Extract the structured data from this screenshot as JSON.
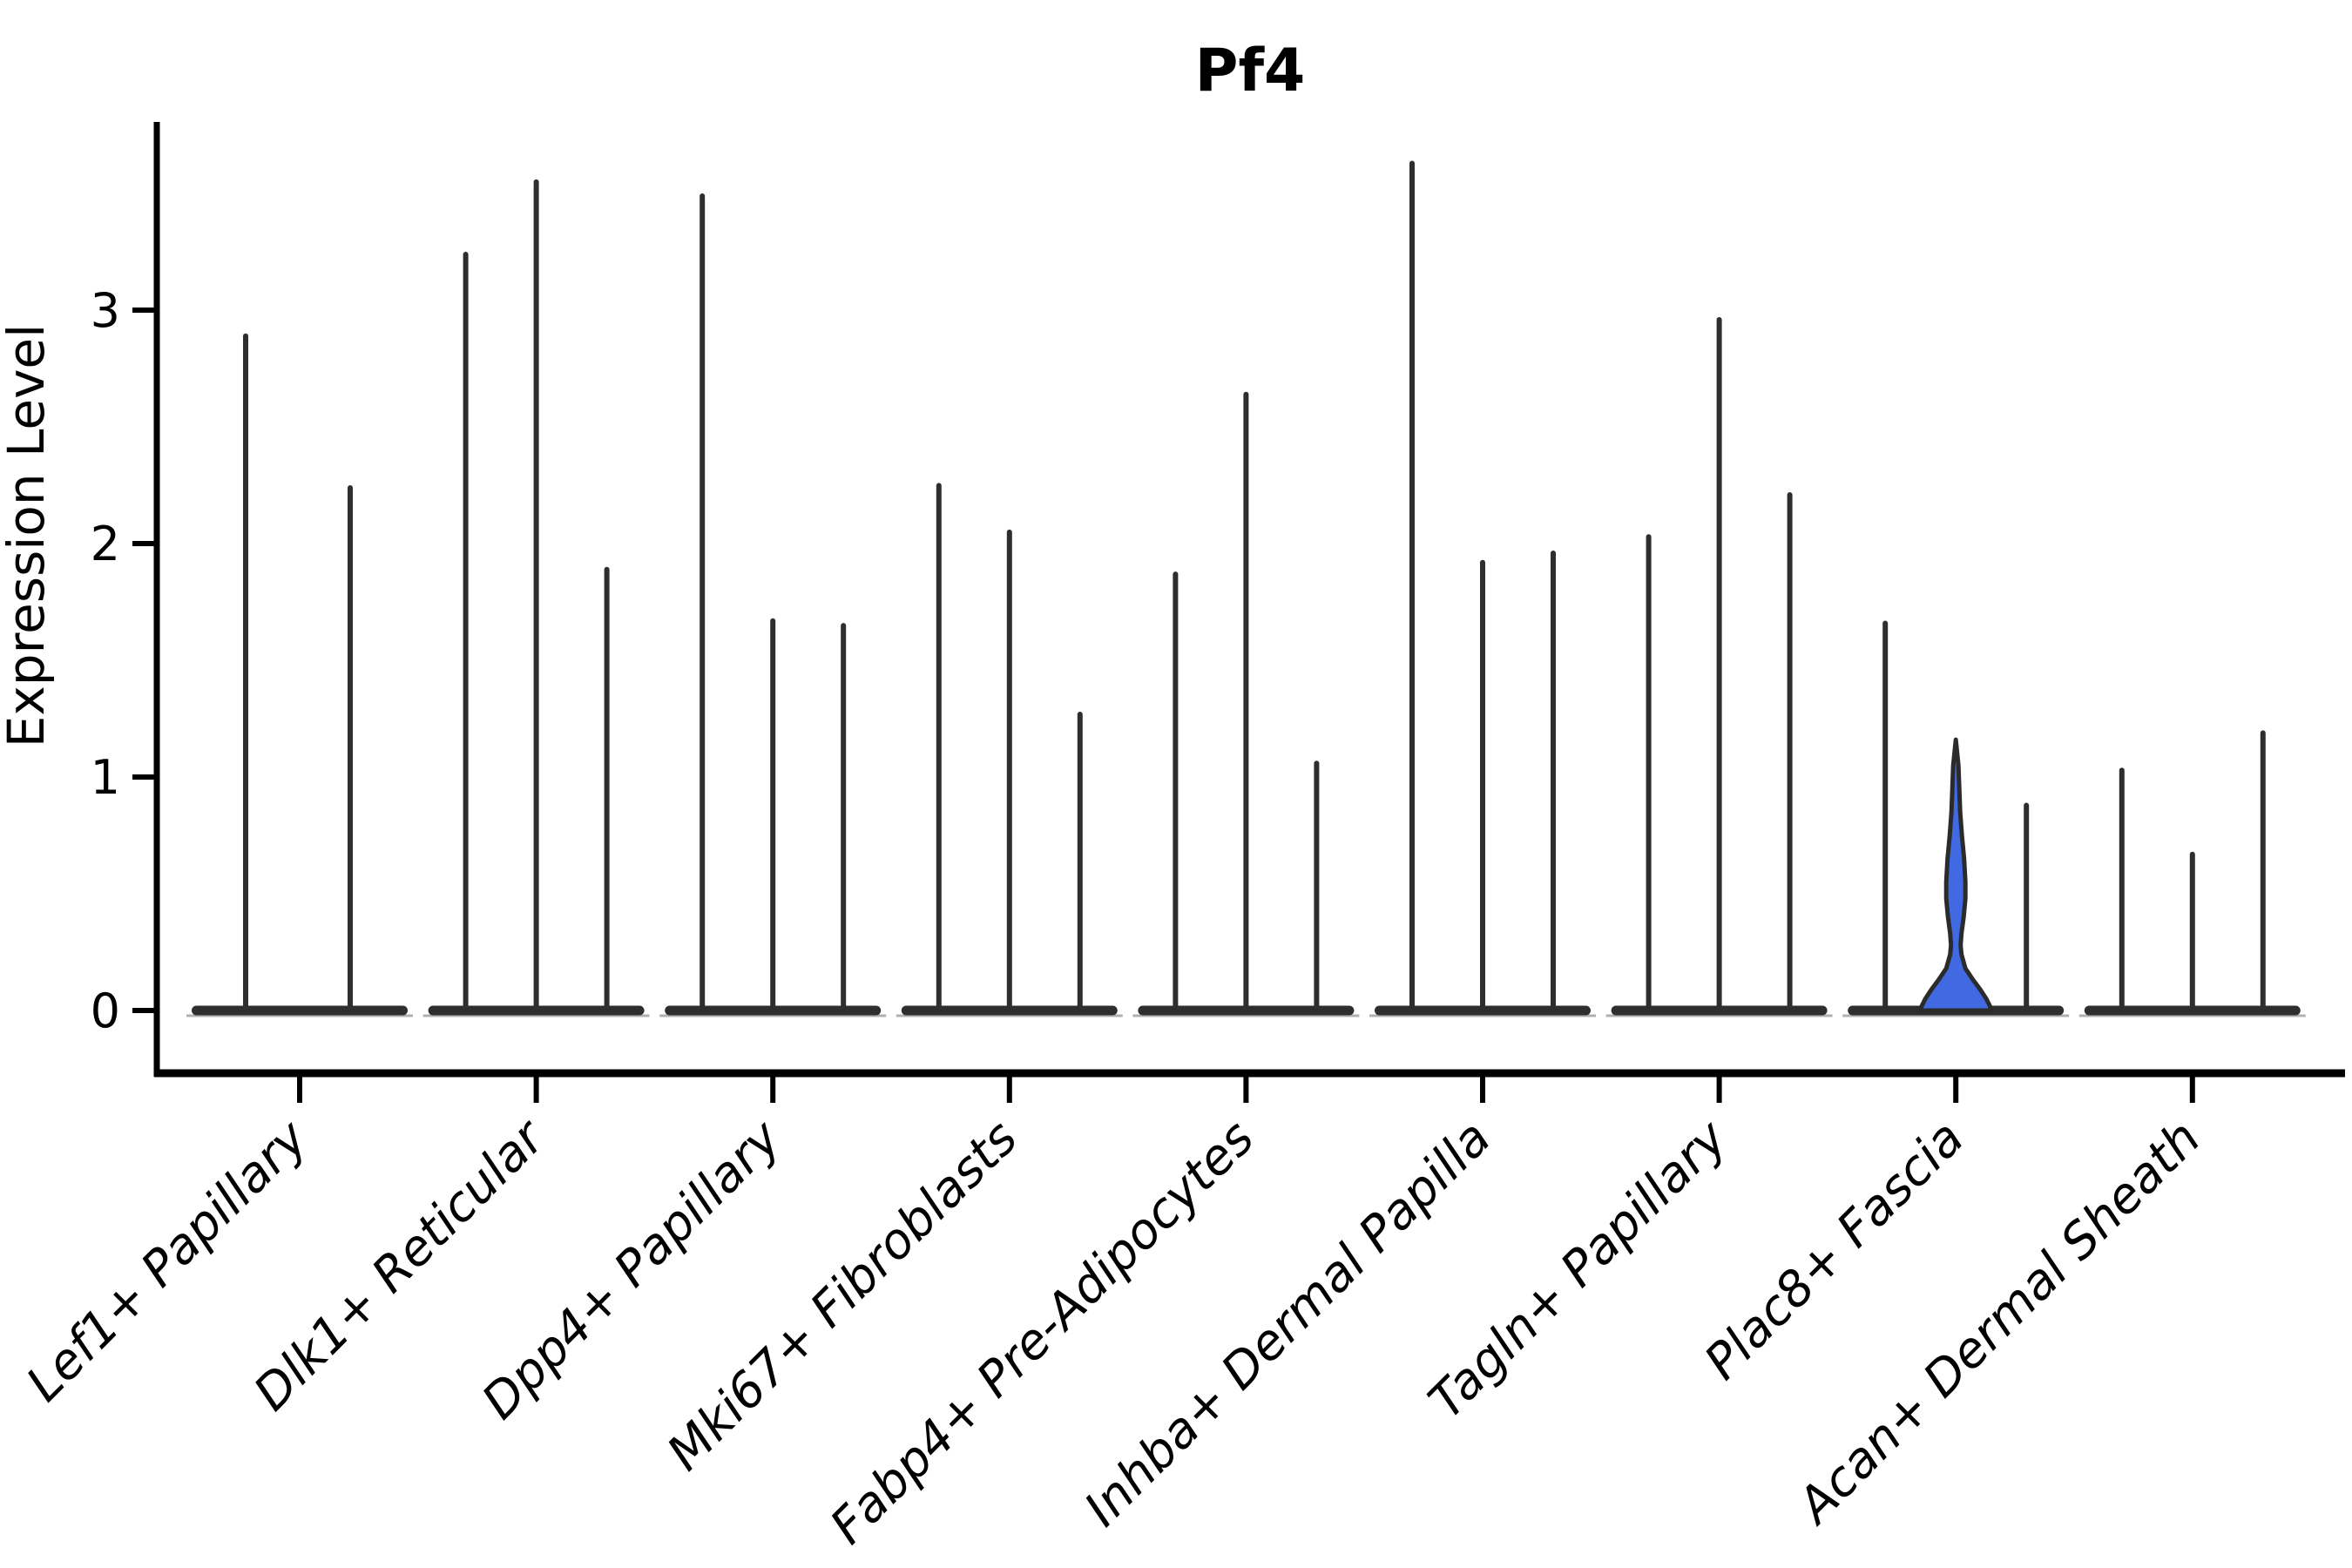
{
  "title": "Pf4",
  "ylabel": "Expression Level",
  "colors": {
    "ink": "#2e2e2e",
    "spine": "#000000",
    "highlight_fill": "#4169E1",
    "highlight_stroke": "#2b2b2b",
    "base_shadow": "#b0b0b0"
  },
  "chart_data": {
    "type": "violin",
    "title": "Pf4",
    "xlabel": "",
    "ylabel": "Expression Level",
    "ylim": [
      -0.08,
      3.81
    ],
    "yticks": [
      0,
      1,
      2,
      3
    ],
    "grid": false,
    "legend": "none",
    "note": "Single-cell expression violin plot; each cluster shows 2-3 needle-thin violins (bulk of cells at 0, thin spike to max value). Only the middle violin of Plac8+ Fascia has visible density (highlighted blue).",
    "categories": [
      "Lef1+ Papillary",
      "Dlk1+ Reticular",
      "Dpp4+ Papillary",
      "Mki67+ Fibroblasts",
      "Fabp4+ Pre-Adipocytes",
      "Inhba+ Dermal Papilla",
      "Tagln+ Papillary",
      "Plac8+ Fascia",
      "Acan+ Dermal Sheath"
    ],
    "groups": [
      {
        "label": "Lef1+ Papillary",
        "violins": [
          {
            "offset": -62,
            "max": 2.9
          },
          {
            "offset": 58,
            "max": 2.25
          }
        ]
      },
      {
        "label": "Dlk1+ Reticular",
        "violins": [
          {
            "offset": -81,
            "max": 3.25
          },
          {
            "offset": 0,
            "max": 3.56
          },
          {
            "offset": 81,
            "max": 1.9
          }
        ]
      },
      {
        "label": "Dpp4+ Papillary",
        "violins": [
          {
            "offset": -81,
            "max": 3.5
          },
          {
            "offset": 0,
            "max": 1.68
          },
          {
            "offset": 81,
            "max": 1.66
          }
        ]
      },
      {
        "label": "Mki67+ Fibroblasts",
        "violins": [
          {
            "offset": -81,
            "max": 2.26
          },
          {
            "offset": 0,
            "max": 2.06
          },
          {
            "offset": 81,
            "max": 1.28
          }
        ]
      },
      {
        "label": "Fabp4+ Pre-Adipocytes",
        "violins": [
          {
            "offset": -81,
            "max": 1.88
          },
          {
            "offset": 0,
            "max": 2.65
          },
          {
            "offset": 81,
            "max": 1.07
          }
        ]
      },
      {
        "label": "Inhba+ Dermal Papilla",
        "violins": [
          {
            "offset": -81,
            "max": 3.64
          },
          {
            "offset": 0,
            "max": 1.93
          },
          {
            "offset": 81,
            "max": 1.97
          }
        ]
      },
      {
        "label": "Tagln+ Papillary",
        "violins": [
          {
            "offset": -81,
            "max": 2.04
          },
          {
            "offset": 0,
            "max": 2.97
          },
          {
            "offset": 81,
            "max": 2.22
          }
        ]
      },
      {
        "label": "Plac8+ Fascia",
        "violins": [
          {
            "offset": -81,
            "max": 1.67
          },
          {
            "offset": 0,
            "max": 1.16,
            "highlight": true
          },
          {
            "offset": 81,
            "max": 0.89
          }
        ]
      },
      {
        "label": "Acan+ Dermal Sheath",
        "violins": [
          {
            "offset": -81,
            "max": 1.04
          },
          {
            "offset": 0,
            "max": 0.68
          },
          {
            "offset": 81,
            "max": 1.2
          }
        ]
      }
    ],
    "highlight_profile": [
      [
        1.16,
        1
      ],
      [
        1.05,
        3
      ],
      [
        0.95,
        4
      ],
      [
        0.85,
        5
      ],
      [
        0.75,
        7
      ],
      [
        0.65,
        9.5
      ],
      [
        0.55,
        11
      ],
      [
        0.48,
        11
      ],
      [
        0.4,
        9
      ],
      [
        0.33,
        6.5
      ],
      [
        0.28,
        5.5
      ],
      [
        0.24,
        6.5
      ],
      [
        0.18,
        11
      ],
      [
        0.13,
        20
      ],
      [
        0.09,
        28
      ],
      [
        0.05,
        35
      ],
      [
        0.02,
        39
      ],
      [
        0.0,
        41
      ]
    ],
    "base_half_width": 124,
    "base_height": 11
  }
}
